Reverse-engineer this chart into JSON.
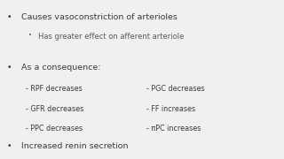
{
  "background_color": "#f0f0f0",
  "text_color": "#3a3a3a",
  "sub_text_color": "#5a5a5a",
  "bullet1": "Causes vasoconstriction of arterioles",
  "sub_bullet1": "Has greater effect on afferent arteriole",
  "bullet2": "As a consequence:",
  "left_items": [
    "- RPF decreases",
    "- GFR decreases",
    "- PPC decreases"
  ],
  "right_items": [
    "- PGC decreases",
    "- FF increases",
    "- πPC increases"
  ],
  "bullet3": "Increased renin secretion",
  "font_size_main": 6.8,
  "font_size_sub": 6.0,
  "font_size_items": 5.8
}
